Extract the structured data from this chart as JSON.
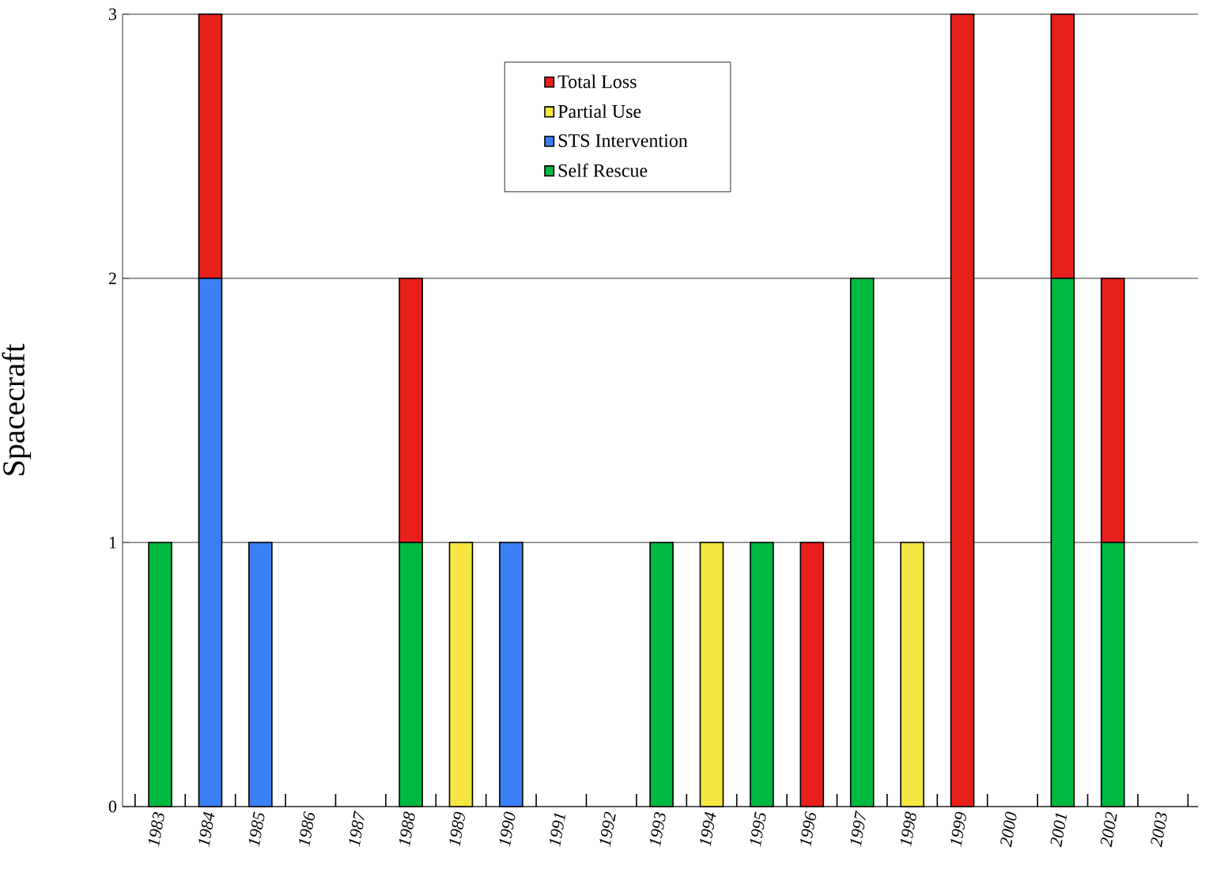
{
  "chart_data": {
    "type": "bar",
    "stacked": true,
    "ylabel": "Spacecraft",
    "categories": [
      "1983",
      "1984",
      "1985",
      "1986",
      "1987",
      "1988",
      "1989",
      "1990",
      "1991",
      "1992",
      "1993",
      "1994",
      "1995",
      "1996",
      "1997",
      "1998",
      "1999",
      "2000",
      "2001",
      "2002",
      "2003"
    ],
    "series": [
      {
        "name": "Self Rescue",
        "color": "#00b940",
        "values": [
          1,
          0,
          0,
          0,
          0,
          1,
          0,
          0,
          0,
          0,
          1,
          0,
          1,
          0,
          2,
          0,
          0,
          0,
          2,
          1,
          0
        ]
      },
      {
        "name": "STS Intervention",
        "color": "#3b7ff5",
        "values": [
          0,
          2,
          1,
          0,
          0,
          0,
          0,
          1,
          0,
          0,
          0,
          0,
          0,
          0,
          0,
          0,
          0,
          0,
          0,
          0,
          0
        ]
      },
      {
        "name": "Partial Use",
        "color": "#f5e642",
        "values": [
          0,
          0,
          0,
          0,
          0,
          0,
          1,
          0,
          0,
          0,
          0,
          1,
          0,
          0,
          0,
          1,
          0,
          0,
          0,
          0,
          0
        ]
      },
      {
        "name": "Total Loss",
        "color": "#e8201c",
        "values": [
          0,
          1,
          0,
          0,
          0,
          1,
          0,
          0,
          0,
          0,
          0,
          0,
          0,
          1,
          0,
          0,
          3,
          0,
          1,
          1,
          0
        ]
      }
    ],
    "ylim": [
      0,
      3
    ],
    "yticks": [
      0,
      1,
      2,
      3
    ],
    "grid": "y",
    "legend": "top"
  }
}
